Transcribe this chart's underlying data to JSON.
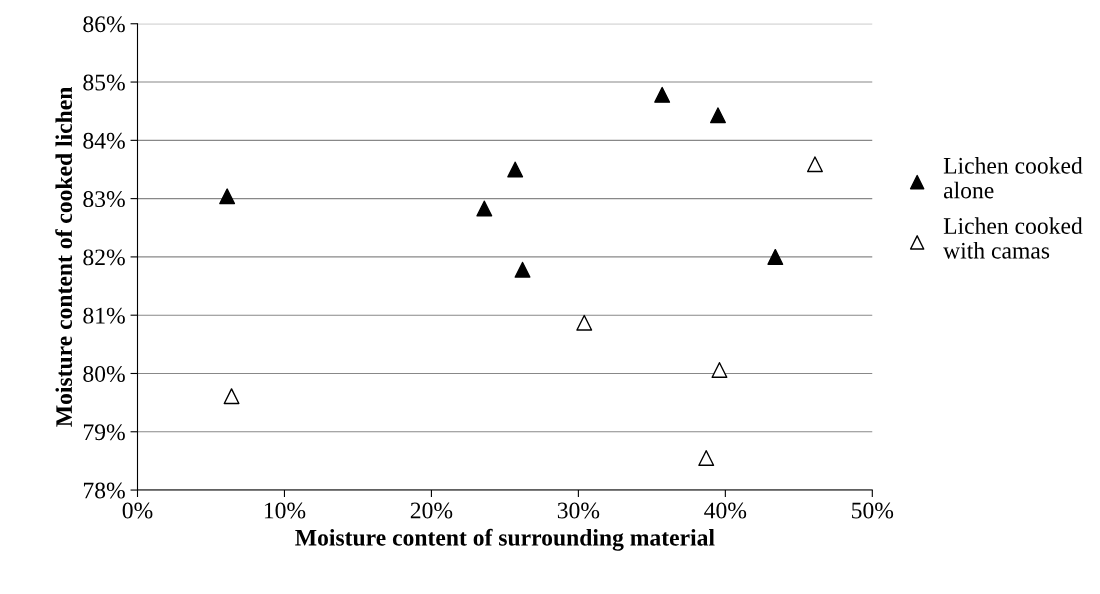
{
  "chart_data": {
    "type": "scatter",
    "xlabel": "Moisture content of surrounding material",
    "ylabel": "Moisture content of cooked lichen",
    "xlim": [
      0,
      50
    ],
    "ylim": [
      78,
      86
    ],
    "xticks": [
      {
        "value": 0,
        "label": "0%"
      },
      {
        "value": 10,
        "label": "10%"
      },
      {
        "value": 20,
        "label": "20%"
      },
      {
        "value": 30,
        "label": "30%"
      },
      {
        "value": 40,
        "label": "40%"
      },
      {
        "value": 50,
        "label": "50%"
      }
    ],
    "yticks": [
      {
        "value": 78,
        "label": "78%"
      },
      {
        "value": 79,
        "label": "79%"
      },
      {
        "value": 80,
        "label": "80%"
      },
      {
        "value": 81,
        "label": "81%"
      },
      {
        "value": 82,
        "label": "82%"
      },
      {
        "value": 83,
        "label": "83%"
      },
      {
        "value": 84,
        "label": "84%"
      },
      {
        "value": 85,
        "label": "85%"
      },
      {
        "value": 86,
        "label": "86%"
      }
    ],
    "grid": "y",
    "legend": "right",
    "marker": "triangle",
    "series": [
      {
        "name": "Lichen cooked\nalone",
        "color": "#000000",
        "x": [
          6.1,
          23.6,
          25.7,
          26.2,
          35.7,
          39.5,
          43.4
        ],
        "values": [
          83.04,
          82.83,
          83.5,
          81.78,
          84.78,
          84.43,
          82.0
        ]
      },
      {
        "name": "Lichen cooked\nwith camas",
        "color": "#ffffff",
        "x": [
          6.4,
          30.4,
          39.6,
          38.7,
          46.1
        ],
        "values": [
          79.61,
          80.87,
          80.06,
          78.55,
          83.59
        ]
      }
    ]
  }
}
